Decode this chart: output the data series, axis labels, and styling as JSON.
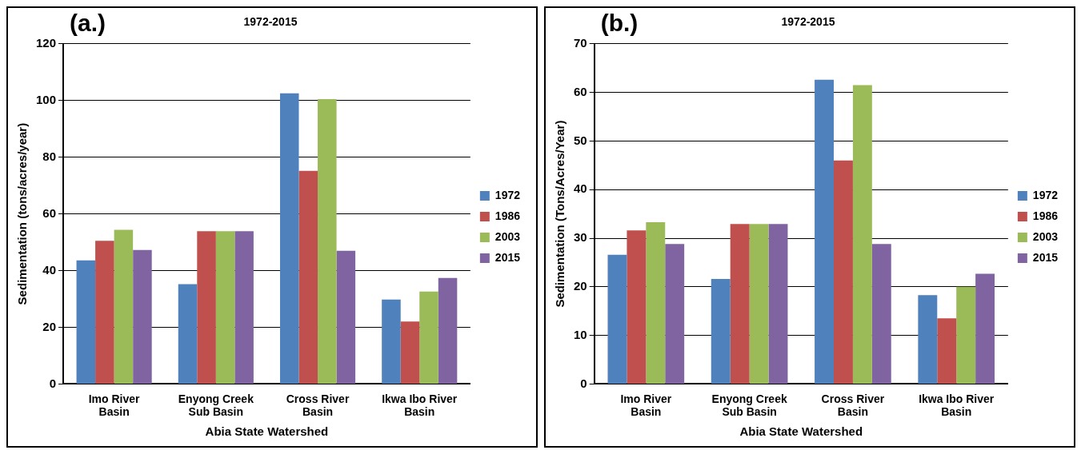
{
  "chart_data": [
    {
      "type": "bar",
      "title": "1972-2015",
      "xlabel": "Abia State Watershed",
      "ylabel": "Sedimentation (tons/acres/year)",
      "annotations": [
        "(a.)"
      ],
      "categories": [
        "Imo River Basin",
        "Enyong Creek Sub Basin",
        "Cross River Basin",
        "Ikwa Ibo River Basin"
      ],
      "series": [
        {
          "name": "1972",
          "color": "#4f81bd",
          "values": [
            43.6,
            35.2,
            102.5,
            29.8
          ]
        },
        {
          "name": "1986",
          "color": "#c0504d",
          "values": [
            50.5,
            53.9,
            75.2,
            22.0
          ]
        },
        {
          "name": "2003",
          "color": "#9bbb59",
          "values": [
            54.4,
            53.9,
            100.5,
            32.6
          ]
        },
        {
          "name": "2015",
          "color": "#8064a2",
          "values": [
            47.3,
            53.9,
            47.0,
            37.4
          ]
        }
      ],
      "ylim": [
        0,
        120
      ],
      "yticks": [
        0,
        20,
        40,
        60,
        80,
        100,
        120
      ],
      "grid": "y",
      "legend": "right"
    },
    {
      "type": "bar",
      "title": "1972-2015",
      "xlabel": "Abia State Watershed",
      "ylabel": "Sedimentation (Tons/Acres/Year)",
      "annotations": [
        "(b.)"
      ],
      "categories": [
        "Imo River Basin",
        "Enyong Creek Sub Basin",
        "Cross River Basin",
        "Ikwa Ibo River Basin"
      ],
      "series": [
        {
          "name": "1972",
          "color": "#4f81bd",
          "values": [
            26.6,
            21.6,
            62.6,
            18.3
          ]
        },
        {
          "name": "1986",
          "color": "#c0504d",
          "values": [
            31.6,
            32.9,
            46.0,
            13.5
          ]
        },
        {
          "name": "2003",
          "color": "#9bbb59",
          "values": [
            33.3,
            32.9,
            61.5,
            20.0
          ]
        },
        {
          "name": "2015",
          "color": "#8064a2",
          "values": [
            28.8,
            32.9,
            28.8,
            22.7
          ]
        }
      ],
      "ylim": [
        0,
        70
      ],
      "yticks": [
        0,
        10,
        20,
        30,
        40,
        50,
        60,
        70
      ],
      "grid": "y",
      "legend": "right"
    }
  ]
}
